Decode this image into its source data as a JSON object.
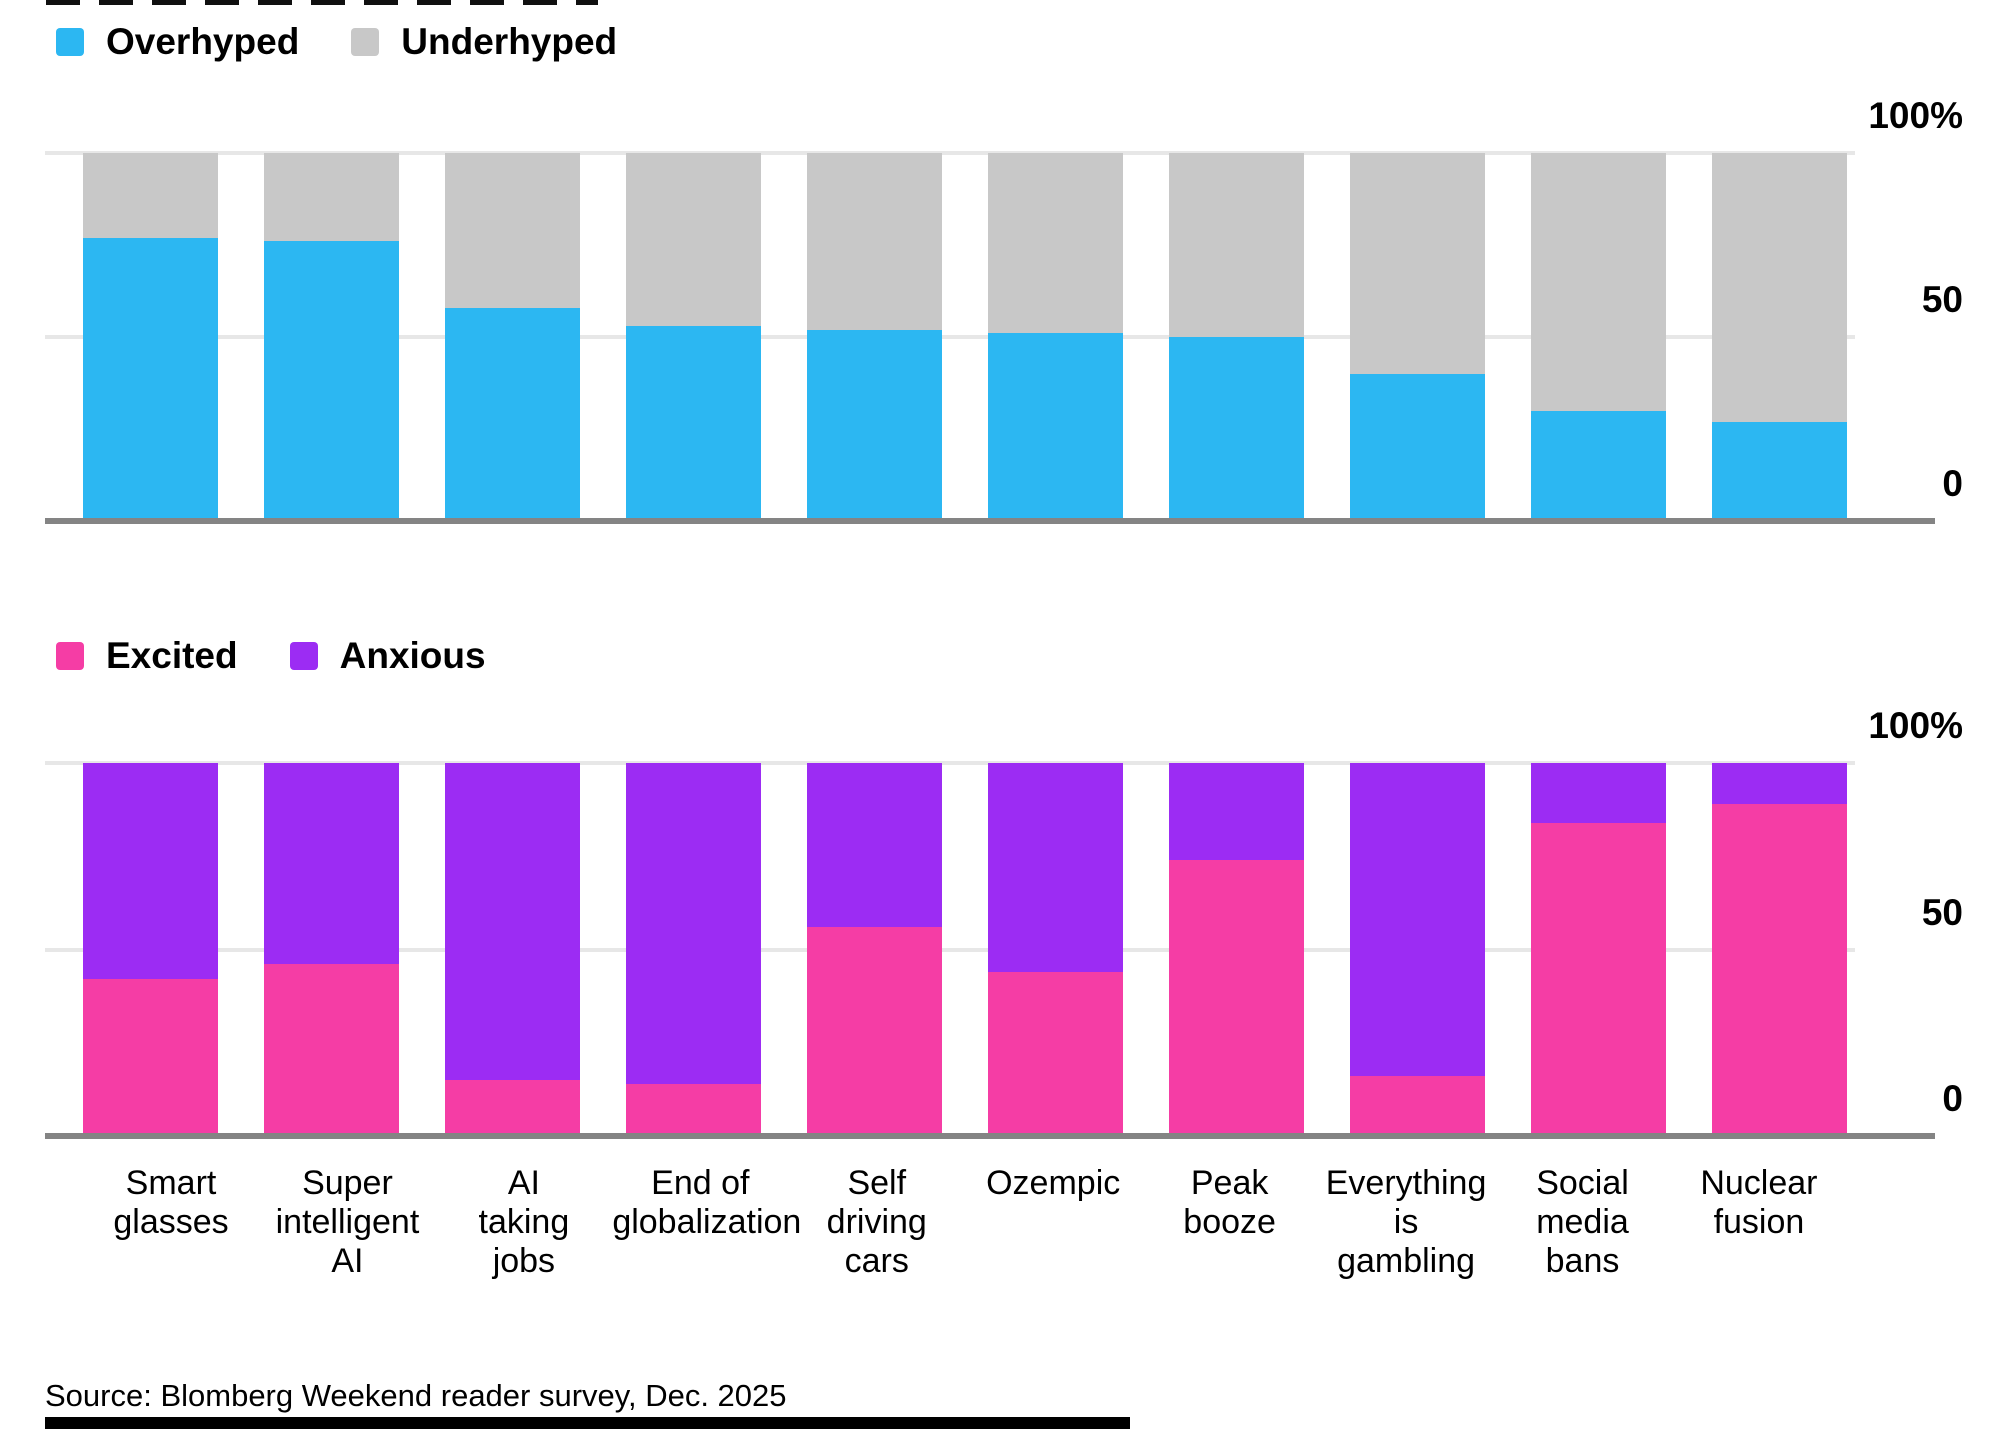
{
  "source": "Source: Blomberg Weekend reader survey, Dec. 2025",
  "categories": [
    [
      "Smart",
      "glasses"
    ],
    [
      "Super",
      "intelligent",
      "AI"
    ],
    [
      "AI",
      "taking",
      "jobs"
    ],
    [
      "End of",
      "globalization"
    ],
    [
      "Self",
      "driving",
      "cars"
    ],
    [
      "Ozempic"
    ],
    [
      "Peak",
      "booze"
    ],
    [
      "Everything",
      "is",
      "gambling"
    ],
    [
      "Social",
      "media",
      "bans"
    ],
    [
      "Nuclear",
      "fusion"
    ]
  ],
  "chart_data": [
    {
      "type": "bar",
      "stacked": true,
      "title": "",
      "xlabel": "",
      "ylabel": "",
      "ylim": [
        0,
        100
      ],
      "grid": true,
      "legend_position": "top-left",
      "yticks": [
        {
          "label": "100%",
          "value": 100
        },
        {
          "label": "50",
          "value": 50
        },
        {
          "label": "0",
          "value": 0
        }
      ],
      "series": [
        {
          "name": "Overhyped",
          "color": "#2CB7F2",
          "values": [
            77,
            76,
            58,
            53,
            52,
            51,
            50,
            40,
            30,
            27
          ]
        },
        {
          "name": "Underhyped",
          "color": "#C8C8C8",
          "values": [
            23,
            24,
            42,
            47,
            48,
            49,
            50,
            60,
            70,
            73
          ]
        }
      ]
    },
    {
      "type": "bar",
      "stacked": true,
      "title": "",
      "xlabel": "",
      "ylabel": "",
      "ylim": [
        0,
        100
      ],
      "grid": true,
      "legend_position": "top-left",
      "yticks": [
        {
          "label": "100%",
          "value": 100
        },
        {
          "label": "50",
          "value": 50
        },
        {
          "label": "0",
          "value": 0
        }
      ],
      "series": [
        {
          "name": "Excited",
          "color": "#F53DA5",
          "values": [
            42,
            46,
            15,
            14,
            56,
            44,
            74,
            16,
            84,
            89
          ]
        },
        {
          "name": "Anxious",
          "color": "#9C2CF3",
          "values": [
            58,
            54,
            85,
            86,
            44,
            56,
            26,
            84,
            16,
            11
          ]
        }
      ]
    }
  ]
}
